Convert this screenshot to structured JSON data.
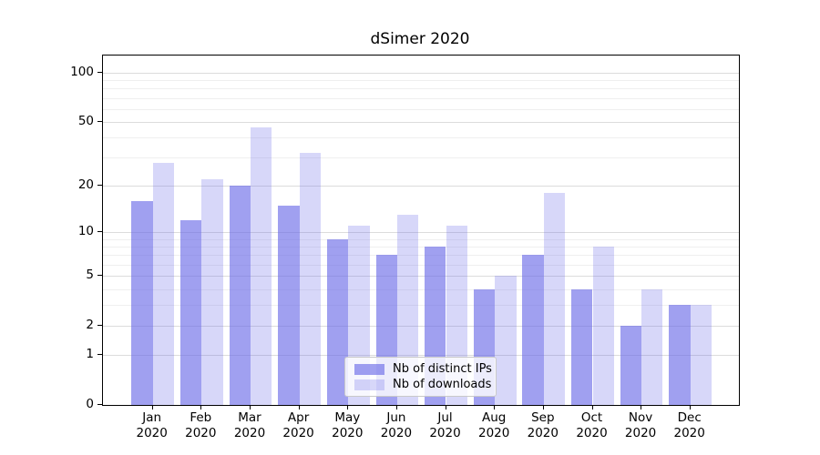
{
  "chart_data": {
    "type": "bar",
    "title": "dSimer 2020",
    "categories": [
      "Jan",
      "Feb",
      "Mar",
      "Apr",
      "May",
      "Jun",
      "Jul",
      "Aug",
      "Sep",
      "Oct",
      "Nov",
      "Dec"
    ],
    "x_tick_second_line": "2020",
    "series": [
      {
        "name": "Nb of distinct IPs",
        "color": "rgba(107,107,232,0.64)",
        "base_hex": "#6b6be8",
        "values": [
          16,
          12,
          20,
          15,
          9,
          7,
          8,
          4,
          7,
          4,
          2,
          3
        ]
      },
      {
        "name": "Nb of downloads",
        "color": "rgba(107,107,232,0.27)",
        "base_hex": "#6b6be8",
        "values": [
          28,
          22,
          46,
          32,
          11,
          13,
          11,
          5,
          18,
          8,
          4,
          3
        ]
      }
    ],
    "yscale": "log1p",
    "ylim": [
      0,
      127
    ],
    "y_major_ticks": [
      100,
      50,
      20,
      10,
      5,
      2,
      1,
      0
    ],
    "y_minor_gridlines": [
      3,
      4,
      6,
      7,
      8,
      9,
      30,
      40,
      60,
      70,
      80,
      90
    ],
    "grid": true,
    "legend_position": "lower center",
    "colors": {
      "major_grid": "#dcdcdc",
      "minor_grid": "#efefef",
      "spine": "#000000",
      "text": "#000000"
    }
  }
}
